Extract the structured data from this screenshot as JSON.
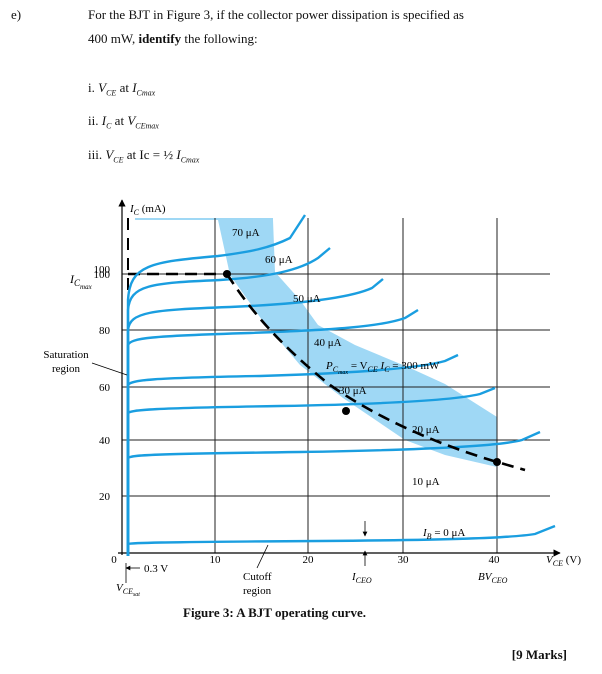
{
  "question": {
    "label": "e)",
    "line1_pre": "For the BJT in Figure 3, if the collector power dissipation is specified as",
    "line2_pre": "400 mW, ",
    "line2_bold": "identify",
    "line2_post": " the following:",
    "items": [
      {
        "num": "i.",
        "a": "V",
        "a_sub": "CE",
        "mid": " at ",
        "b": "I",
        "b_sub": "Cmax"
      },
      {
        "num": "ii.",
        "a": "I",
        "a_sub": "C",
        "mid": " at ",
        "b": "V",
        "b_sub": "CEmax"
      },
      {
        "num": "iii.",
        "a": "V",
        "a_sub": "CE",
        "mid": " at Ic  = ½ ",
        "b": "I",
        "b_sub": "Cmax"
      }
    ]
  },
  "figure": {
    "caption": "Figure 3:  A BJT operating curve.",
    "y_axis_label": "I",
    "y_axis_label_sub": "C",
    "y_axis_unit": " (mA)",
    "x_axis_label": "V",
    "x_axis_label_sub": "CE",
    "x_axis_unit": " (V)",
    "icmax_label": "I",
    "icmax_sub": "C",
    "icmax_subsub": "max",
    "saturation_label_1": "Saturation",
    "saturation_label_2": "region",
    "cutoff_label_1": "Cutoff",
    "cutoff_label_2": "region",
    "vcesat_value": "0.3 V",
    "vcesat_label": "V",
    "vcesat_sub": "CE",
    "vcesat_subsub": "sat",
    "iceo_label": "I",
    "iceo_sub": "CEO",
    "bvceo_label": "BV",
    "bvceo_sub": "CEO",
    "pcmax_label": "P",
    "pcmax_sub": "C",
    "pcmax_subsub": "max",
    "pcmax_rest1": " = V",
    "pcmax_rest_sub1": "CE",
    "pcmax_rest2": " I",
    "pcmax_rest_sub2": "C",
    "pcmax_rest3": " = 300 mW",
    "colors": {
      "curve": "#1a9ee0",
      "region": "#9fd8f5",
      "axis": "#000000"
    },
    "chart_data": {
      "type": "line",
      "x_ticks": [
        "0",
        "10",
        "20",
        "30",
        "40"
      ],
      "y_ticks": [
        "20",
        "40",
        "60",
        "80",
        "100"
      ],
      "series": [
        {
          "name": "0 μA",
          "label": "I",
          "label_sub": "B",
          "label_rest": " = 0 μA"
        },
        {
          "name": "10 μA",
          "label": "10 μA"
        },
        {
          "name": "20 μA",
          "label": "20 μA"
        },
        {
          "name": "30 μA",
          "label": "30 μA"
        },
        {
          "name": "40 μA",
          "label": "40 μA"
        },
        {
          "name": "50 μA",
          "label": "50 μA"
        },
        {
          "name": "60 μA",
          "label": "60 μA"
        },
        {
          "name": "70 μA",
          "label": "70 μA"
        }
      ],
      "ic_max_ma": 100,
      "bv_ceo_v": 40,
      "vce_sat_v": 0.3,
      "pc_max_mw": 300
    }
  },
  "marks": "[9 Marks]"
}
